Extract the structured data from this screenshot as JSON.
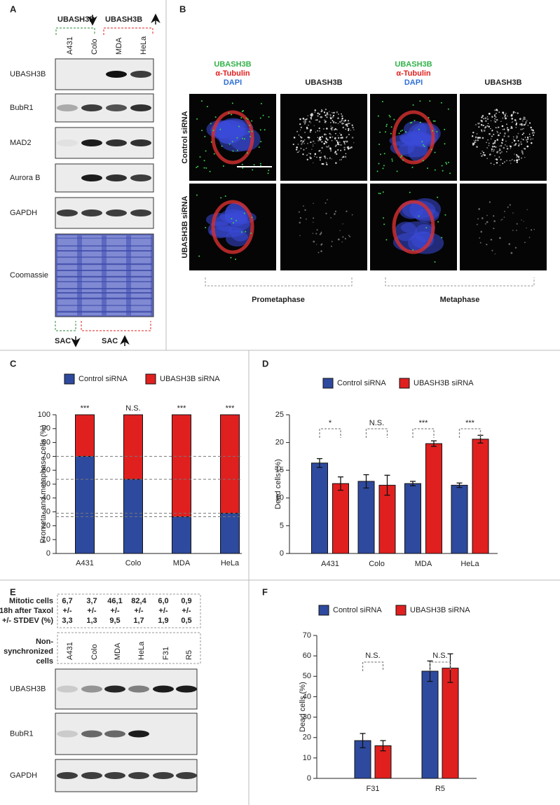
{
  "panels": {
    "A": {
      "label": "A",
      "groups": [
        "UBASH3B",
        "UBASH3B"
      ],
      "lanes": [
        "A431",
        "Colo",
        "MDA",
        "HeLa"
      ],
      "rows": [
        "UBASH3B",
        "BubR1",
        "MAD2",
        "Aurora B",
        "GAPDH",
        "Coomassie"
      ],
      "footer": [
        "SAC",
        "SAC"
      ]
    },
    "B": {
      "label": "B",
      "stain_labels": [
        "UBASH3B",
        "α-Tubulin",
        "DAPI"
      ],
      "channel_label": "UBASH3B",
      "rows": [
        "Control siRNA",
        "UBASH3B siRNA"
      ],
      "phases": [
        "Prometaphase",
        "Metaphase"
      ]
    },
    "C": {
      "label": "C"
    },
    "D": {
      "label": "D"
    },
    "E": {
      "label": "E",
      "table_header": [
        "Mitotic cells",
        "18h after Taxol",
        "+/- STDEV (%)"
      ],
      "table_columns": [
        [
          "6,7",
          "+/-",
          "3,3"
        ],
        [
          "3,7",
          "+/-",
          "1,3"
        ],
        [
          "46,1",
          "+/-",
          "9,5"
        ],
        [
          "82,4",
          "+/-",
          "1,7"
        ],
        [
          "6,0",
          "+/-",
          "1,9"
        ],
        [
          "0,9",
          "+/-",
          "0,5"
        ]
      ],
      "lanes_header": [
        "Non-",
        "synchronized",
        "cells"
      ],
      "lanes": [
        "A431",
        "Colo",
        "MDA",
        "HeLa",
        "F31",
        "R5"
      ],
      "rows": [
        "UBASH3B",
        "BubR1",
        "GAPDH"
      ]
    },
    "F": {
      "label": "F"
    }
  },
  "chart_data": [
    {
      "type": "bar",
      "stacked": true,
      "y_label": "Prometa- and metaphase cells (%)",
      "categories": [
        "A431",
        "Colo",
        "MDA",
        "HeLa"
      ],
      "series": [
        {
          "name": "Control siRNA",
          "color": "#2e4a9e",
          "values": [
            70,
            53.5,
            26.5,
            29
          ]
        },
        {
          "name": "UBASH3B siRNA",
          "color": "#e0201f",
          "values": [
            30,
            46.5,
            73.5,
            71
          ]
        }
      ],
      "ylim": [
        0,
        100
      ],
      "yticks": [
        0,
        10,
        20,
        30,
        40,
        50,
        60,
        70,
        80,
        90,
        100
      ],
      "annotations": [
        "***",
        "N.S.",
        "***",
        "***"
      ],
      "reference_lines": true
    },
    {
      "type": "bar",
      "y_label": "Dead cells (%)",
      "categories": [
        "A431",
        "Colo",
        "MDA",
        "HeLa"
      ],
      "series": [
        {
          "name": "Control siRNA",
          "color": "#2e4a9e",
          "values": [
            16.3,
            13.0,
            12.6,
            12.3
          ],
          "errors": [
            0.8,
            1.2,
            0.4,
            0.4
          ]
        },
        {
          "name": "UBASH3B siRNA",
          "color": "#e0201f",
          "values": [
            12.6,
            12.3,
            19.8,
            20.6
          ],
          "errors": [
            1.2,
            1.8,
            0.5,
            0.7
          ]
        }
      ],
      "ylim": [
        0,
        25
      ],
      "yticks": [
        0,
        5,
        10,
        15,
        20,
        25
      ],
      "annotations": [
        "*",
        "N.S.",
        "***",
        "***"
      ],
      "brackets": true
    },
    {
      "type": "bar",
      "y_label": "Dead cells (%)",
      "categories": [
        "F31",
        "R5"
      ],
      "series": [
        {
          "name": "Control siRNA",
          "color": "#2e4a9e",
          "values": [
            18.5,
            52.5
          ],
          "errors": [
            3.5,
            5
          ]
        },
        {
          "name": "UBASH3B siRNA",
          "color": "#e0201f",
          "values": [
            16,
            54
          ],
          "errors": [
            2.5,
            7
          ]
        }
      ],
      "ylim": [
        0,
        70
      ],
      "yticks": [
        0,
        10,
        20,
        30,
        40,
        50,
        60,
        70
      ],
      "annotations": [
        "N.S.",
        "N.S."
      ],
      "brackets": true
    }
  ]
}
